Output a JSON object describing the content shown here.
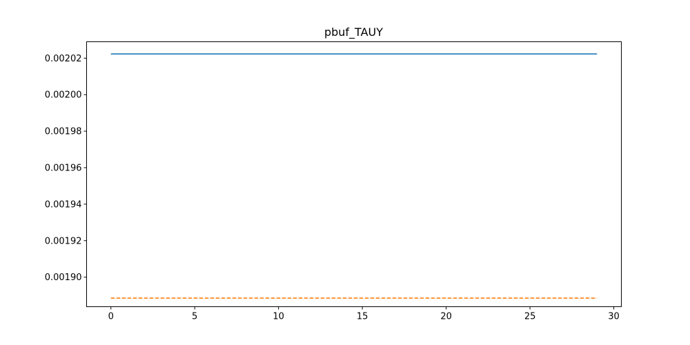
{
  "chart_data": {
    "type": "line",
    "title": "pbuf_TAUY",
    "xlabel": "",
    "ylabel": "",
    "xlim": [
      -1.45,
      30.45
    ],
    "ylim": [
      0.0018838,
      0.002029
    ],
    "x_ticks": [
      0,
      5,
      10,
      15,
      20,
      25,
      30
    ],
    "x_tick_labels": [
      "0",
      "5",
      "10",
      "15",
      "20",
      "25",
      "30"
    ],
    "y_ticks": [
      0.0019,
      0.00192,
      0.00194,
      0.00196,
      0.00198,
      0.002,
      0.00202
    ],
    "y_tick_labels": [
      "0.00190",
      "0.00192",
      "0.00194",
      "0.00196",
      "0.00198",
      "0.00200",
      "0.00202"
    ],
    "grid": false,
    "series": [
      {
        "color": "#1f77b4",
        "linestyle": "solid",
        "x": [
          0,
          29
        ],
        "y": [
          0.0020223,
          0.0020223
        ]
      },
      {
        "color": "#ff7f0e",
        "linestyle": "dashed",
        "x": [
          0,
          29
        ],
        "y": [
          0.0018885,
          0.0018885
        ]
      }
    ]
  }
}
